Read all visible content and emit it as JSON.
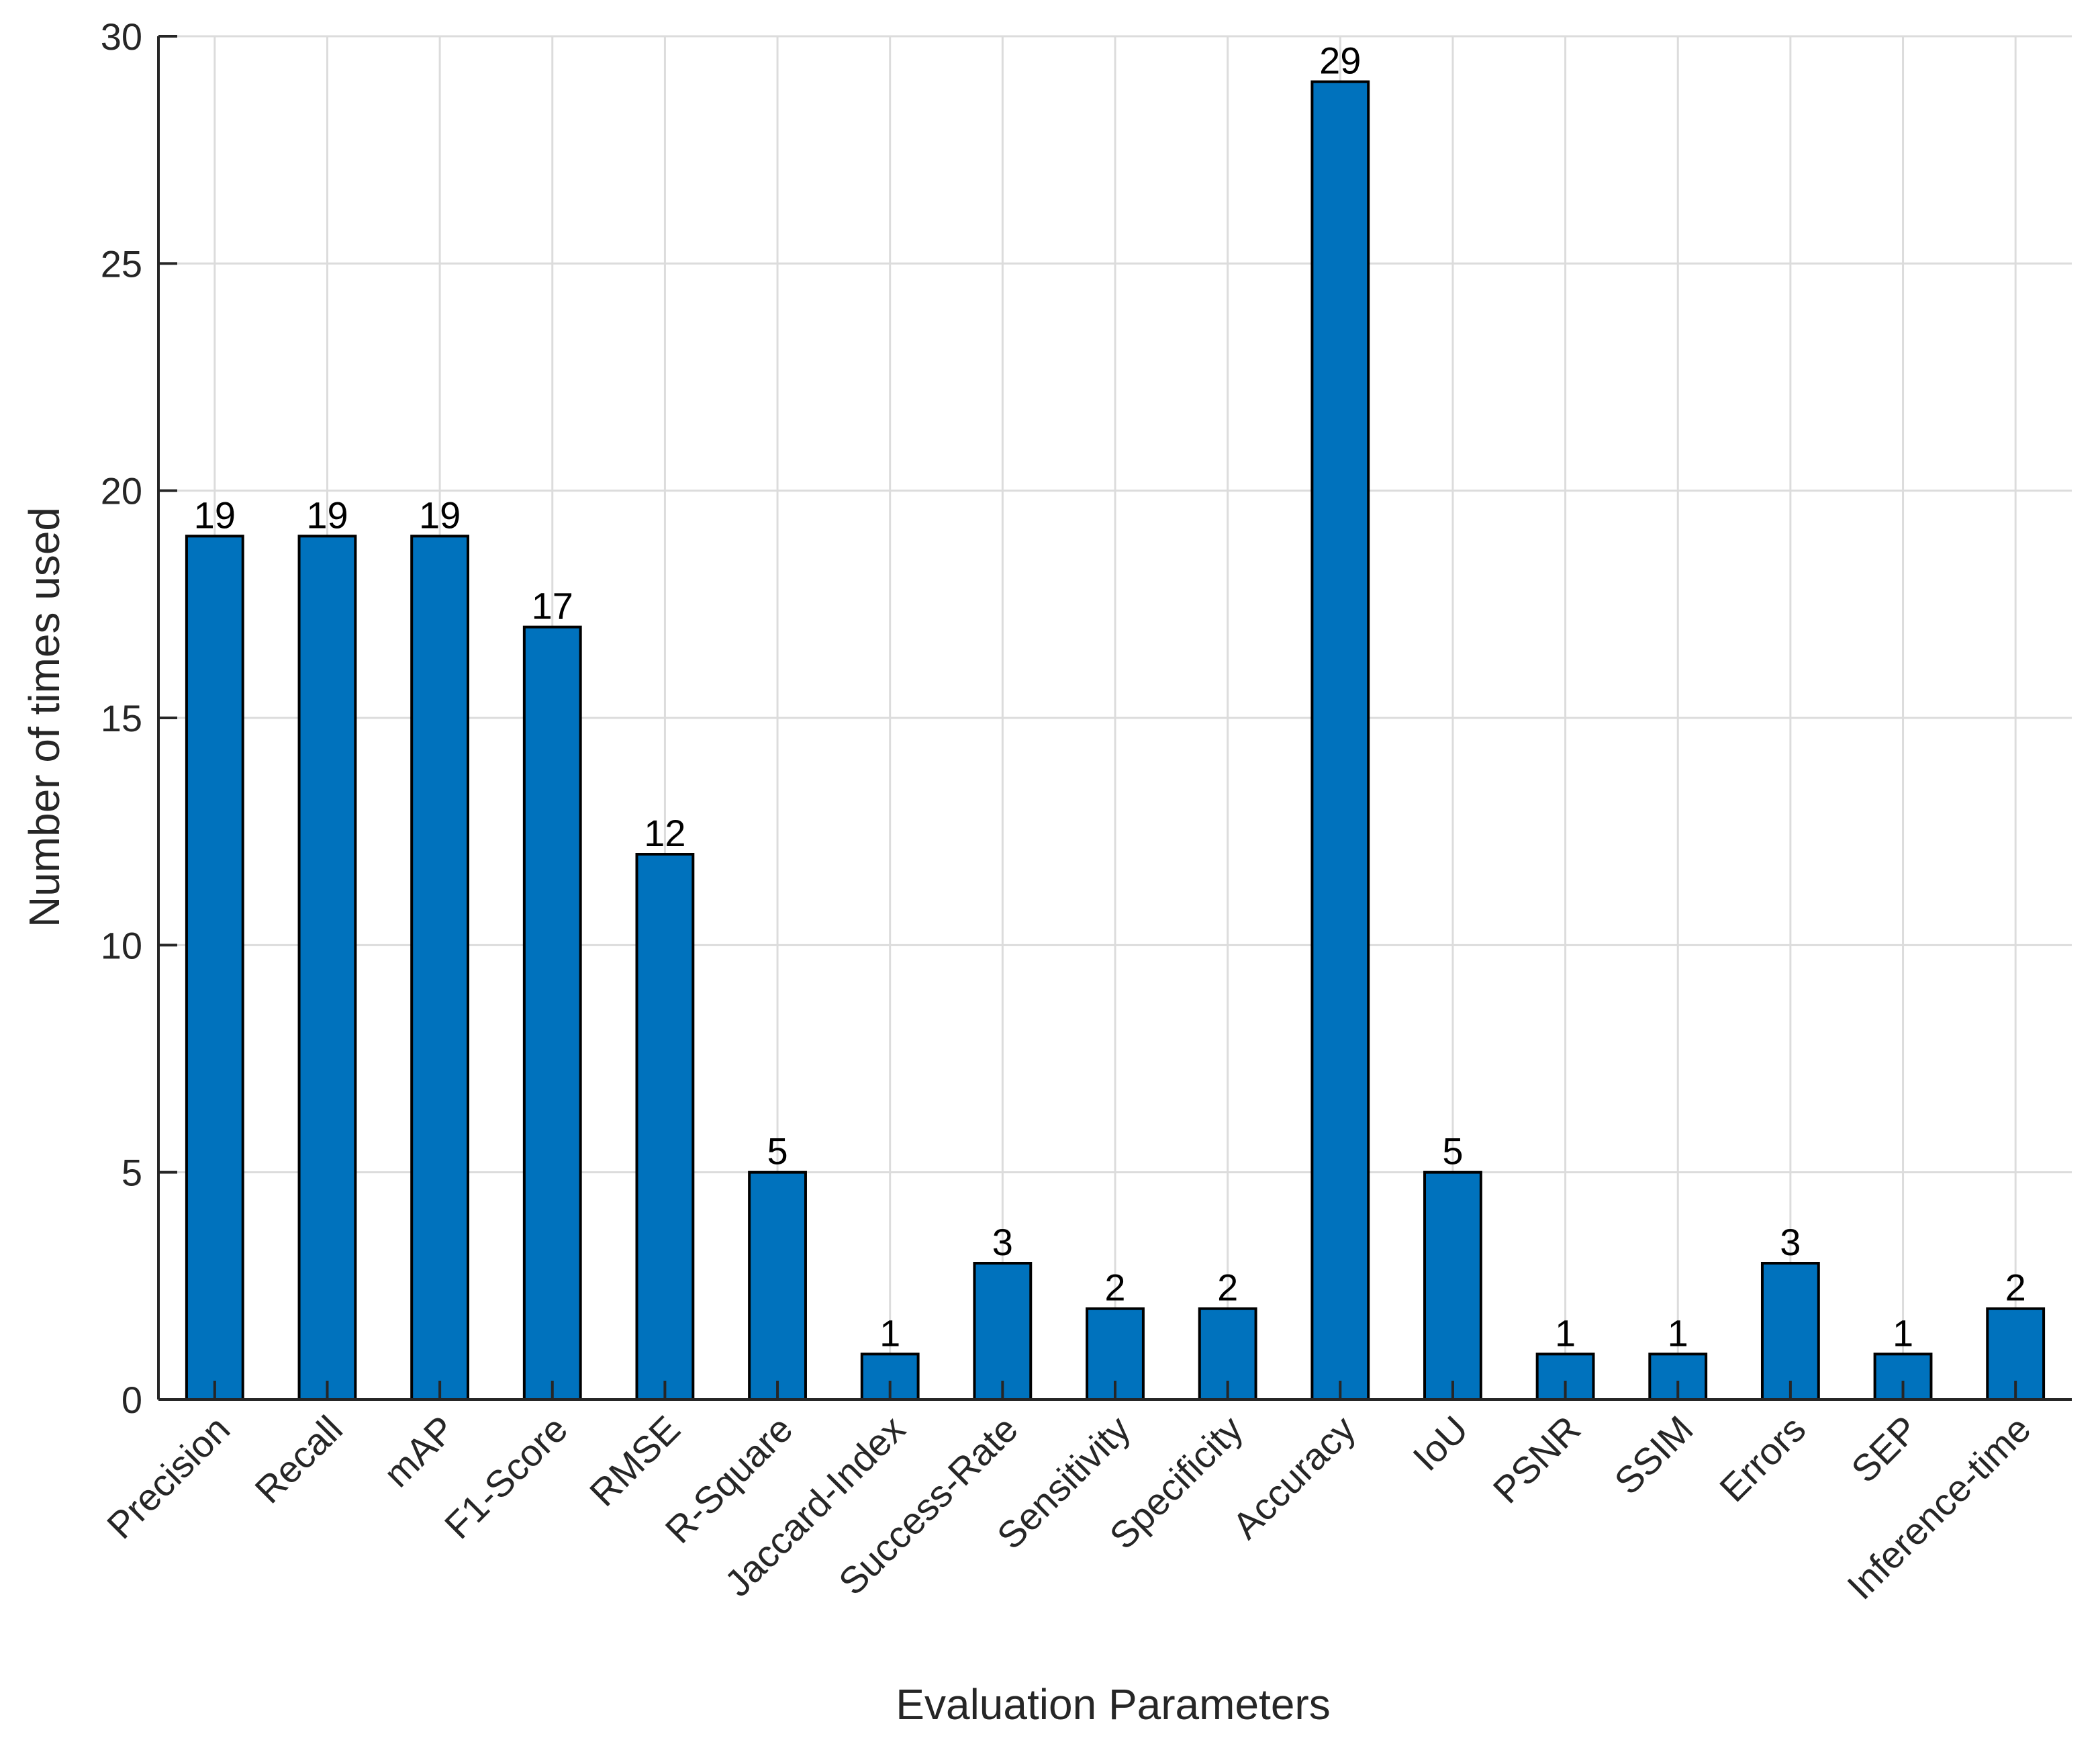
{
  "chart_data": {
    "type": "bar",
    "title": "",
    "xlabel": "Evaluation Parameters",
    "ylabel": "Number of times used",
    "categories": [
      "Precision",
      "Recall",
      "mAP",
      "F1-Score",
      "RMSE",
      "R-Square",
      "Jaccard-Index",
      "Success-Rate",
      "Sensitivity",
      "Specificity",
      "Accuracy",
      "IoU",
      "PSNR",
      "SSIM",
      "Errors",
      "SEP",
      "Inference-time"
    ],
    "values": [
      19,
      19,
      19,
      17,
      12,
      5,
      1,
      3,
      2,
      2,
      29,
      5,
      1,
      1,
      3,
      1,
      2
    ],
    "ylim": [
      0,
      30
    ],
    "yticks": [
      0,
      5,
      10,
      15,
      20,
      25,
      30
    ],
    "grid": true,
    "bar_color": "#0072bd",
    "bar_edge_color": "#000000"
  }
}
